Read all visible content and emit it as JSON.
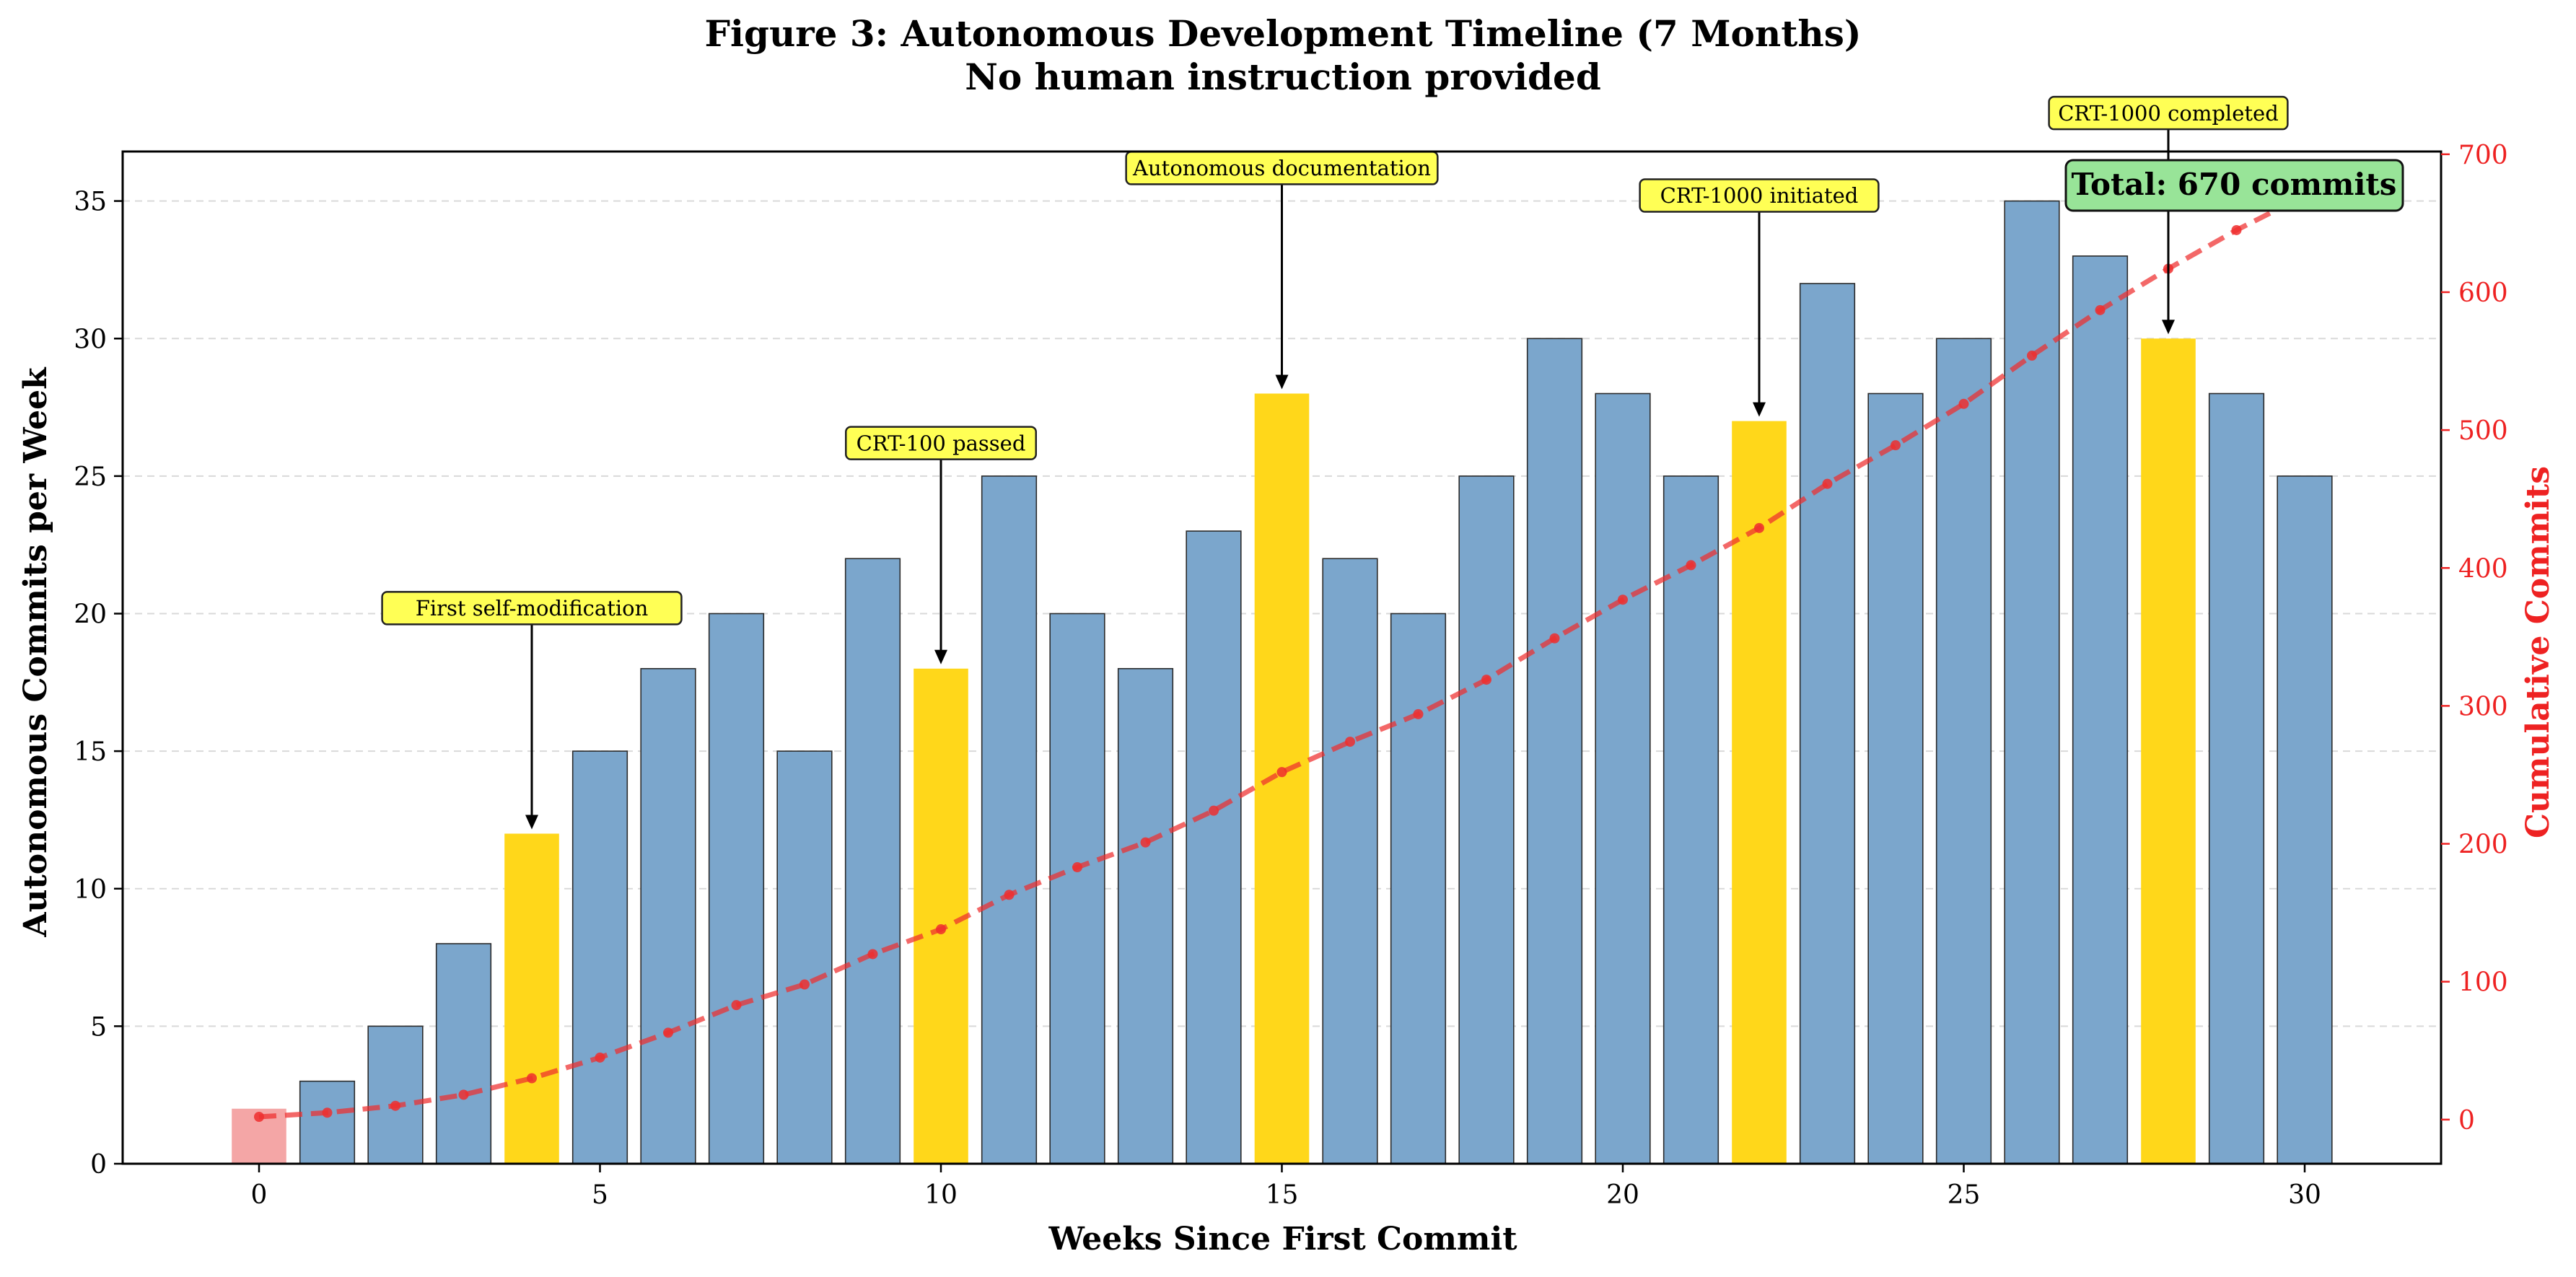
{
  "chart_data": {
    "type": "bar",
    "title_line1": "Figure 3: Autonomous Development Timeline (7 Months)",
    "title_line2": "No human instruction provided",
    "xlabel": "Weeks Since First Commit",
    "ylabel": "Autonomous Commits per Week",
    "y2label": "Cumulative Commits",
    "xlim": [
      -2,
      32
    ],
    "ylim": [
      0,
      36.8
    ],
    "y2lim": [
      -32,
      702
    ],
    "x_ticks": [
      0,
      5,
      10,
      15,
      20,
      25,
      30
    ],
    "y_ticks": [
      0,
      5,
      10,
      15,
      20,
      25,
      30,
      35
    ],
    "y2_ticks": [
      0,
      100,
      200,
      300,
      400,
      500,
      600,
      700
    ],
    "grid": "horizontal dashed",
    "weeks": [
      0,
      1,
      2,
      3,
      4,
      5,
      6,
      7,
      8,
      9,
      10,
      11,
      12,
      13,
      14,
      15,
      16,
      17,
      18,
      19,
      20,
      21,
      22,
      23,
      24,
      25,
      26,
      27,
      28,
      29,
      30
    ],
    "series": [
      {
        "name": "Autonomous Commits per Week",
        "values": [
          2,
          3,
          5,
          8,
          12,
          15,
          18,
          20,
          15,
          22,
          18,
          25,
          20,
          18,
          23,
          28,
          22,
          20,
          25,
          30,
          28,
          25,
          27,
          32,
          28,
          30,
          35,
          33,
          30,
          28,
          25
        ]
      },
      {
        "name": "Cumulative Commits",
        "values": [
          2,
          5,
          10,
          18,
          30,
          45,
          63,
          83,
          98,
          120,
          138,
          163,
          183,
          201,
          224,
          252,
          274,
          294,
          319,
          349,
          377,
          402,
          429,
          461,
          489,
          519,
          554,
          587,
          617,
          645,
          670
        ]
      }
    ],
    "bar_kinds": [
      "first",
      "normal",
      "normal",
      "normal",
      "milestone",
      "normal",
      "normal",
      "normal",
      "normal",
      "normal",
      "milestone",
      "normal",
      "normal",
      "normal",
      "normal",
      "milestone",
      "normal",
      "normal",
      "normal",
      "normal",
      "normal",
      "normal",
      "milestone",
      "normal",
      "normal",
      "normal",
      "normal",
      "normal",
      "milestone",
      "normal",
      "normal"
    ],
    "colors": {
      "normal": "#7ba6cc",
      "milestone": "#ffd71a",
      "first": "#f4a6a6",
      "cumulative": "#ee2e2e",
      "annotation_fill": "#ffff55",
      "total_fill": "#98e498"
    },
    "annotations": [
      {
        "label": "First self-modification",
        "week": 4,
        "label_y": 20.2
      },
      {
        "label": "CRT-100 passed",
        "week": 10,
        "label_y": 26.2
      },
      {
        "label": "Autonomous documentation",
        "week": 15,
        "label_y": 36.2
      },
      {
        "label": "CRT-1000 initiated",
        "week": 22,
        "label_y": 35.2
      },
      {
        "label": "CRT-1000 completed",
        "week": 28,
        "label_y": 38.2
      }
    ],
    "total_box": "Total: 670 commits"
  }
}
